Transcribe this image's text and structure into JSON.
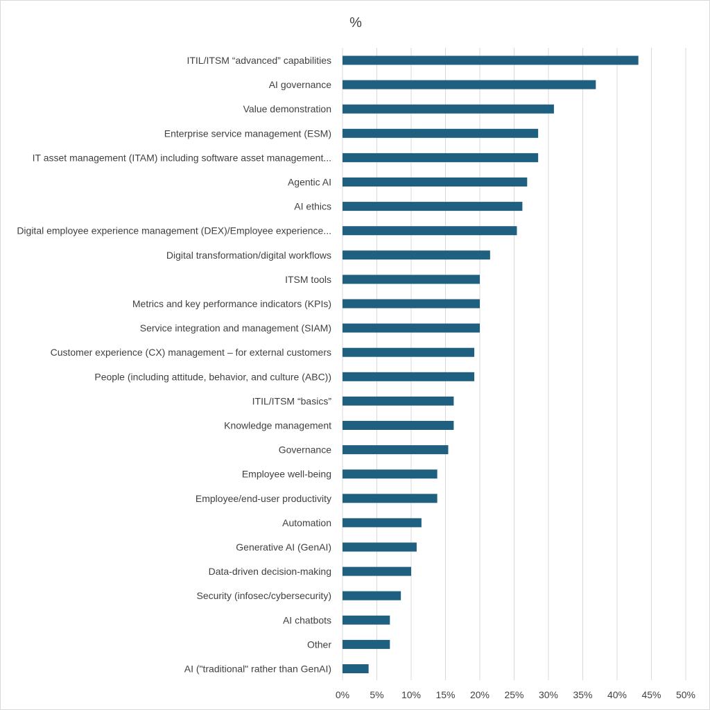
{
  "chart_data": {
    "type": "bar",
    "orientation": "horizontal",
    "title": "%",
    "xlabel": "",
    "ylabel": "",
    "xlim": [
      0,
      50
    ],
    "x_ticks": [
      "0%",
      "5%",
      "10%",
      "15%",
      "20%",
      "25%",
      "30%",
      "35%",
      "40%",
      "45%",
      "50%"
    ],
    "grid": true,
    "bar_color": "#1f5f7f",
    "categories": [
      "ITIL/ITSM “advanced” capabilities",
      "AI governance",
      "Value demonstration",
      "Enterprise service management (ESM)",
      "IT asset management (ITAM) including software asset management...",
      "Agentic AI",
      "AI ethics",
      "Digital employee experience management (DEX)/Employee experience...",
      "Digital transformation/digital workflows",
      "ITSM tools",
      "Metrics and key performance indicators (KPIs)",
      "Service integration and management (SIAM)",
      "Customer experience (CX) management – for external customers",
      "People (including attitude, behavior, and culture (ABC))",
      "ITIL/ITSM “basics”",
      "Knowledge management",
      "Governance",
      "Employee well-being",
      "Employee/end-user productivity",
      "Automation",
      "Generative AI (GenAI)",
      "Data-driven decision-making",
      "Security (infosec/cybersecurity)",
      "AI chatbots",
      "Other",
      "AI (\"traditional\" rather than GenAI)"
    ],
    "values": [
      43.1,
      36.9,
      30.8,
      28.5,
      28.5,
      26.9,
      26.2,
      25.4,
      21.5,
      20.0,
      20.0,
      20.0,
      19.2,
      19.2,
      16.2,
      16.2,
      15.4,
      13.8,
      13.8,
      11.5,
      10.8,
      10.0,
      8.5,
      6.9,
      6.9,
      3.8
    ]
  }
}
